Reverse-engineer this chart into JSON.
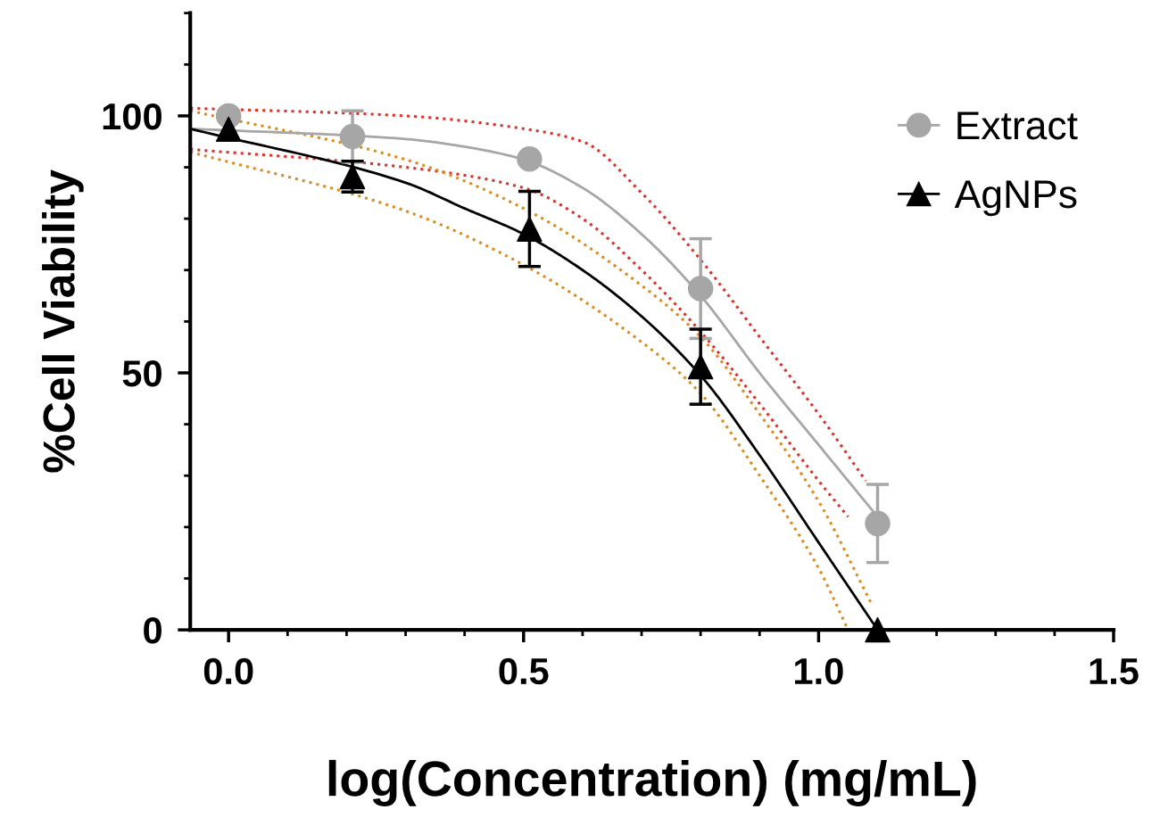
{
  "chart_data": {
    "type": "scatter",
    "xlabel": "log(Concentration) (mg/mL)",
    "ylabel": "%Cell Viability",
    "xlim": [
      -0.065,
      1.5
    ],
    "ylim": [
      0,
      120
    ],
    "xticks": [
      {
        "value": 0,
        "label": "0.0"
      },
      0.5,
      {
        "value": 1,
        "label": "1.0"
      },
      1.5
    ],
    "yticks": [
      0,
      50,
      100
    ],
    "grid": false,
    "legend": "right",
    "series": [
      {
        "type": "line",
        "color": "#e0302a",
        "line_style": "dotted",
        "marker": "none",
        "x": [
          -0.065,
          0.3,
          0.5,
          0.6,
          0.7,
          0.8,
          0.9,
          1.0,
          1.08
        ],
        "values": [
          101.5,
          100,
          97.5,
          95,
          85,
          72,
          57,
          42,
          29
        ]
      },
      {
        "type": "line",
        "color": "#e0302a",
        "line_style": "dotted",
        "marker": "none",
        "x": [
          -0.065,
          0.3,
          0.5,
          0.6,
          0.7,
          0.8,
          0.9,
          1.0,
          1.05
        ],
        "values": [
          93.5,
          90,
          86,
          80,
          70,
          58,
          44,
          29,
          22
        ]
      },
      {
        "type": "line",
        "color": "#e08a1e",
        "line_style": "dotted",
        "marker": "none",
        "x": [
          -0.065,
          0.3,
          0.5,
          0.7,
          0.8,
          0.9,
          1.0,
          1.09
        ],
        "values": [
          101,
          91.5,
          82,
          67,
          57,
          42,
          25,
          5
        ]
      },
      {
        "type": "line",
        "color": "#e08a1e",
        "line_style": "dotted",
        "marker": "none",
        "x": [
          -0.065,
          0.3,
          0.5,
          0.7,
          0.8,
          0.9,
          1.0,
          1.05
        ],
        "values": [
          93,
          81.5,
          71,
          56,
          46,
          30,
          12,
          0
        ]
      },
      {
        "type": "line",
        "color": "#a6a6a6",
        "line_style": "solid",
        "marker": "none",
        "x": [
          -0.065,
          0.3,
          0.4,
          0.5,
          0.6,
          0.7,
          0.8,
          0.9,
          1.0,
          1.1
        ],
        "values": [
          97.5,
          95.5,
          94,
          91.5,
          86,
          77,
          65,
          50,
          36,
          22
        ]
      },
      {
        "type": "line",
        "color": "#000000",
        "line_style": "solid",
        "marker": "none",
        "x": [
          -0.065,
          0.3,
          0.4,
          0.5,
          0.6,
          0.7,
          0.8,
          0.9,
          1.0,
          1.1
        ],
        "values": [
          97.5,
          87,
          82,
          77,
          70,
          61,
          49.5,
          34,
          17,
          0
        ]
      },
      {
        "name": "Extract",
        "color": "#a6a6a6",
        "marker": "circle",
        "x": [
          0,
          0.21,
          0.51,
          0.8,
          1.1
        ],
        "values": [
          100,
          96,
          91.6,
          66.4,
          20.7
        ],
        "errors": [
          null,
          5,
          null,
          9.7,
          7.6
        ]
      },
      {
        "name": "AgNPs",
        "color": "#000000",
        "marker": "triangle",
        "x": [
          0,
          0.21,
          0.51,
          0.8,
          1.1
        ],
        "values": [
          97.4,
          88.2,
          78,
          51.2,
          0
        ],
        "errors": [
          null,
          3,
          7.3,
          7.3,
          null
        ]
      }
    ]
  }
}
